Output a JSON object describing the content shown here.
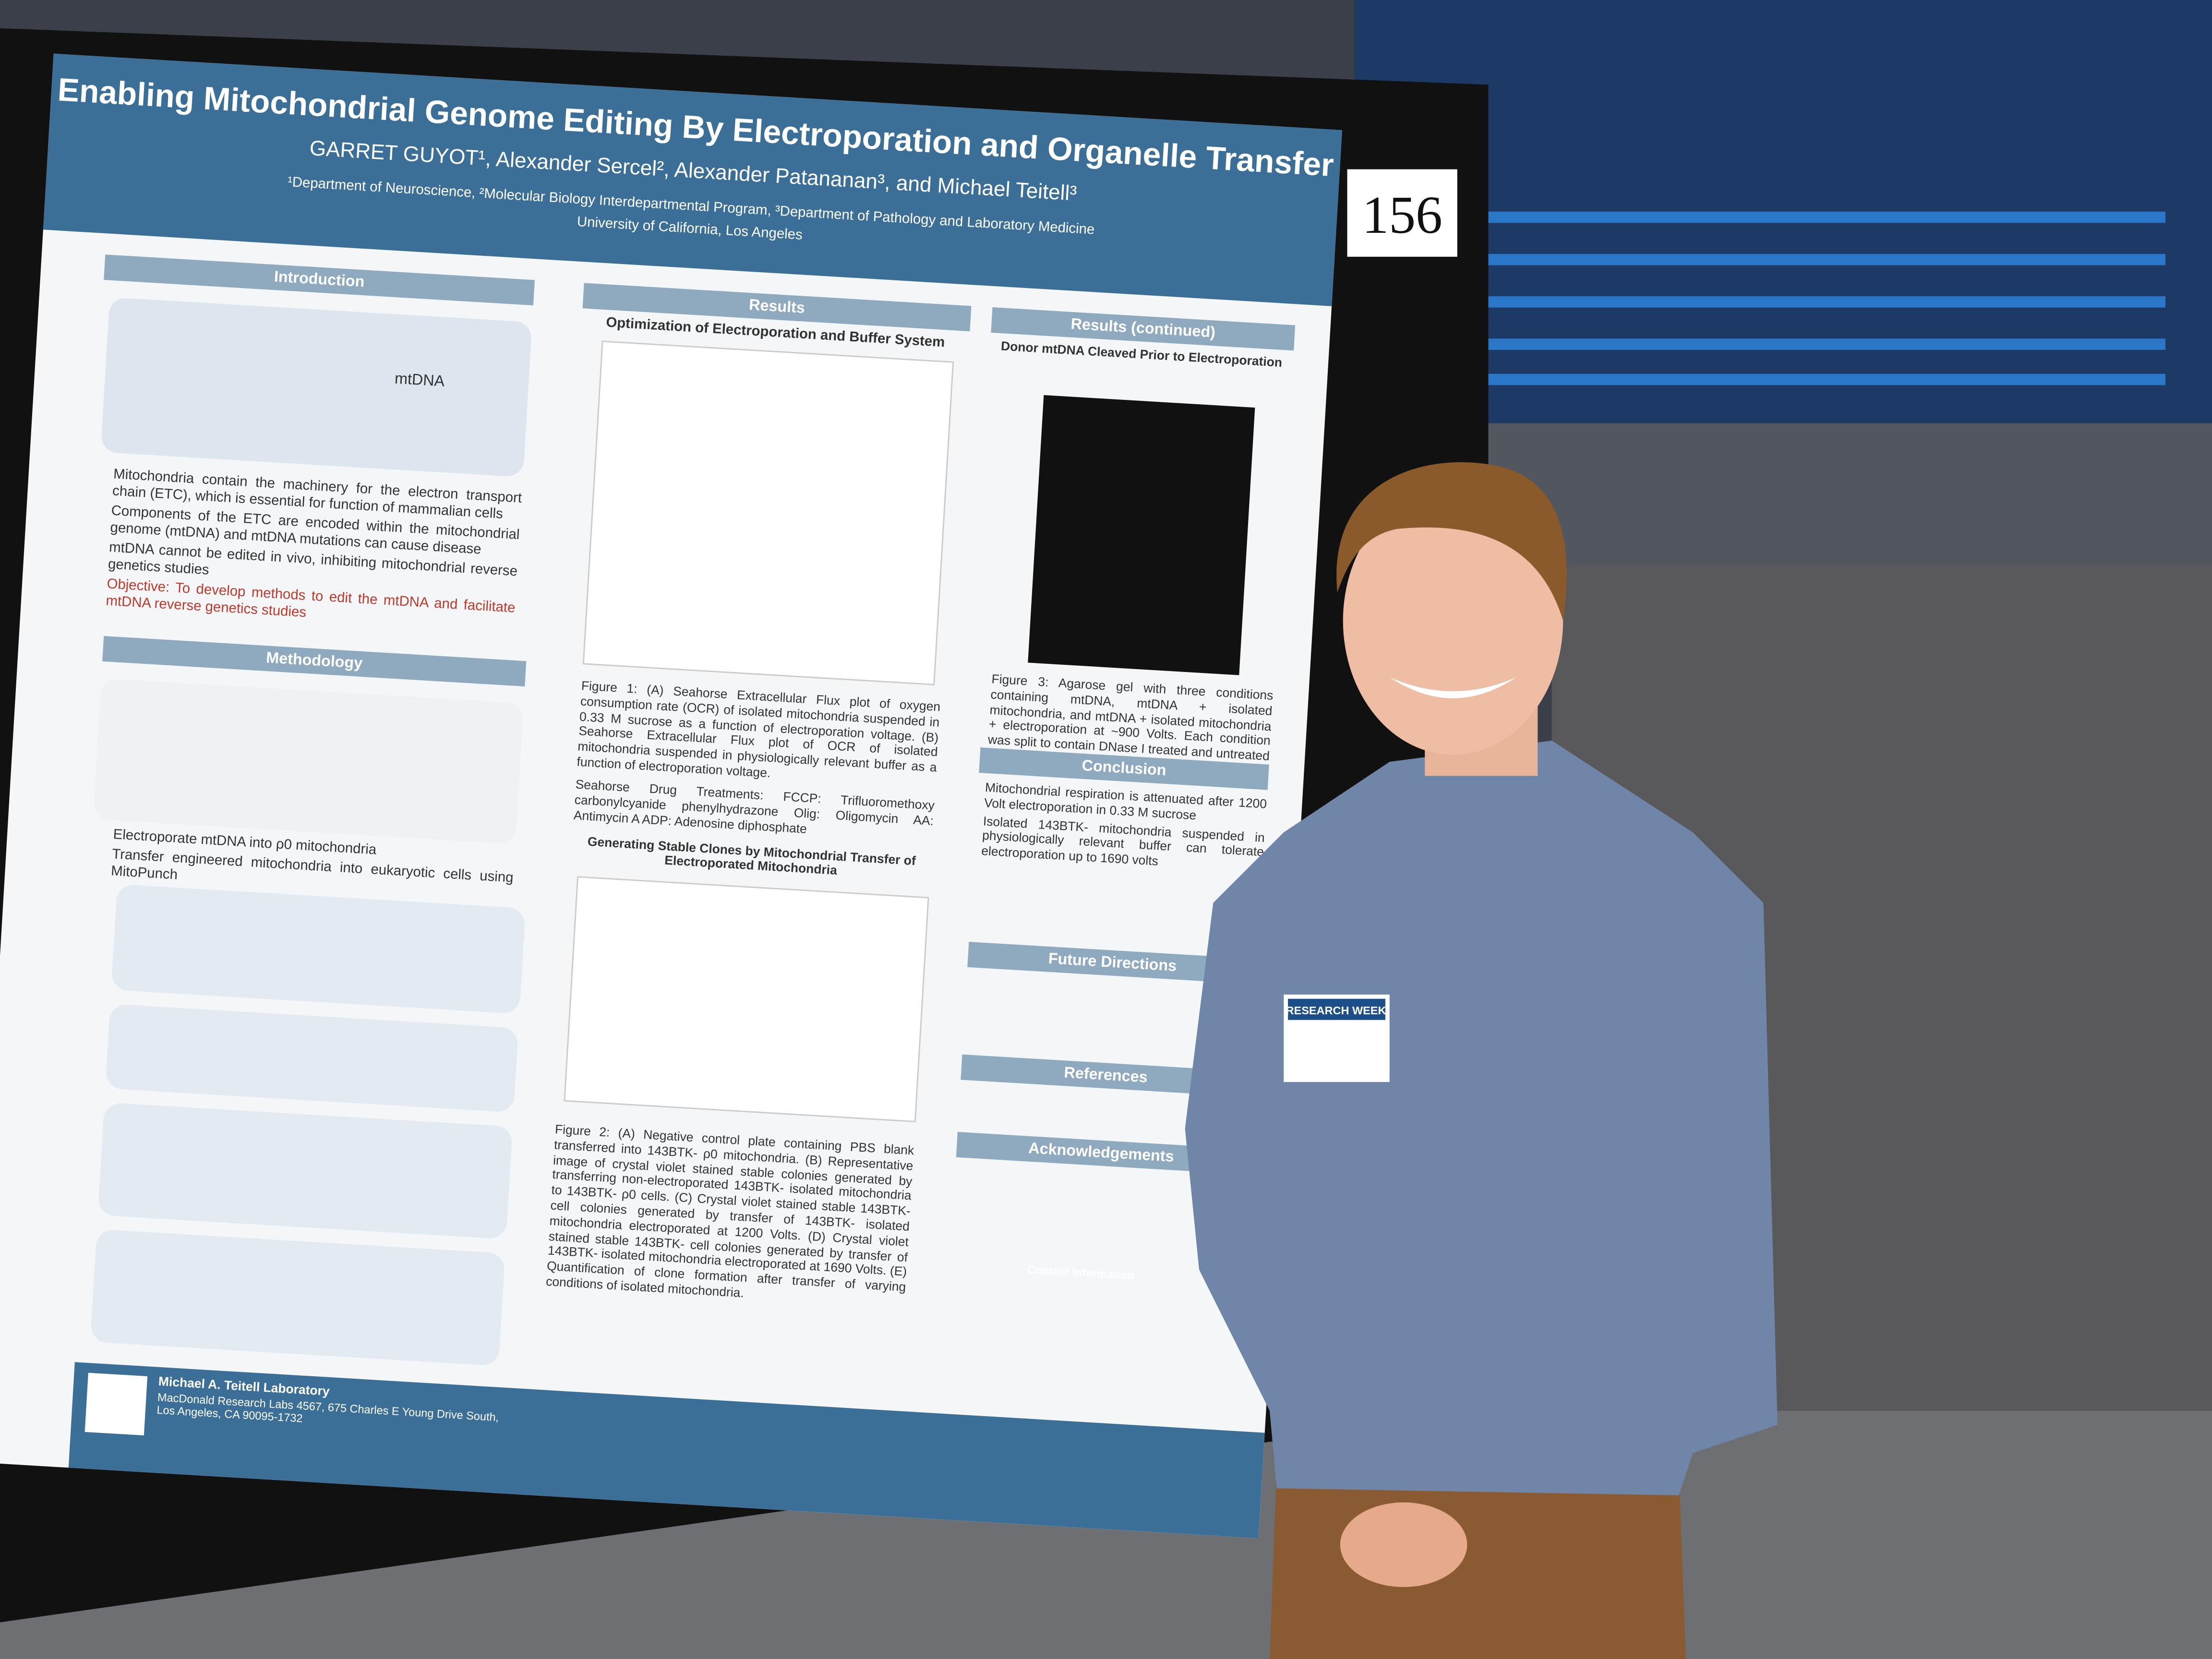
{
  "poster": {
    "title": "Enabling Mitochondrial Genome Editing By Electroporation and Organelle Transfer",
    "authors": "GARRET GUYOT¹,  Alexander Sercel², Alexander Patananan³, and Michael Teitell³",
    "affiliations": "¹Department of Neuroscience, ²Molecular Biology Interdepartmental Program, ³Department of Pathology and Laboratory Medicine",
    "university": "University of California, Los Angeles",
    "number": "156",
    "introduction": {
      "heading": "Introduction",
      "figure_label": "mtDNA",
      "items": [
        "Mitochondria contain the machinery for the electron transport chain (ETC), which is essential for function of mammalian cells",
        "Components of the ETC are encoded within the mitochondrial genome (mtDNA) and mtDNA mutations can cause disease",
        "mtDNA cannot be edited in vivo, inhibiting mitochondrial reverse genetics studies"
      ],
      "objective": "Objective: To develop methods to edit the mtDNA and facilitate mtDNA reverse genetics studies"
    },
    "methodology": {
      "heading": "Methodology",
      "items": [
        "Electroporate mtDNA into ρ0 mitochondria",
        "Transfer engineered mitochondria into eukaryotic cells using MitoPunch"
      ]
    },
    "results": {
      "heading": "Results",
      "figure1_title": "Optimization of Electroporation and Buffer System",
      "figure1_caption": "Figure 1: (A) Seahorse Extracellular Flux plot of oxygen consumption rate (OCR) of isolated mitochondria suspended in 0.33 M sucrose as a function of electroporation voltage. (B) Seahorse Extracellular Flux plot of OCR of isolated mitochondria suspended in physiologically relevant buffer as a function of electroporation voltage.",
      "drug_treatments": "Seahorse Drug Treatments: FCCP: Trifluoromethoxy carbonylcyanide phenylhydrazone Olig: Oligomycin AA: Antimycin A ADP: Adenosine diphosphate",
      "figure2_title": "Generating Stable Clones by Mitochondrial Transfer of Electroporated Mitochondria",
      "figure2_caption": "Figure 2: (A) Negative control plate containing PBS blank transferred into 143BTK- ρ0 mitochondria. (B) Representative image of crystal violet stained stable colonies generated by transferring non-electroporated 143BTK- isolated mitochondria to 143BTK- ρ0 cells. (C) Crystal violet stained stable 143BTK- cell colonies generated by transfer of 143BTK- isolated mitochondria electroporated at 1200 Volts. (D) Crystal violet stained stable 143BTK- cell colonies generated by transfer of 143BTK- isolated mitochondria electroporated at 1690 Volts. (E) Quantification of clone formation after transfer of varying conditions of isolated mitochondria."
    },
    "results_continued": {
      "heading": "Results (continued)",
      "figure3_title": "Donor mtDNA Cleaved Prior to Electroporation",
      "figure3_caption": "Figure 3: Agarose gel with three conditions containing mtDNA, mtDNA + isolated mitochondria, and mtDNA + isolated mitochondria + electroporation at ~900 Volts. Each condition was split to contain DNase I treated and untreated controls."
    },
    "conclusion": {
      "heading": "Conclusion",
      "items": [
        "Mitochondrial respiration is attenuated after 1200 Volt electroporation in 0.33 M sucrose",
        "Isolated 143BTK- mitochondria suspended in physiologically relevant buffer can tolerate electroporation up to 1690 volts"
      ]
    },
    "future_directions": {
      "heading": "Future Directions"
    },
    "references": {
      "heading": "References"
    },
    "acknowledgements": {
      "heading": "Acknowledgements"
    },
    "footer": {
      "lab": "Michael A. Teitell Laboratory",
      "address": "MacDonald Research Labs 4567, 675 Charles E Young Drive South, Los Angeles, CA 90095-1732",
      "contact": "Contact Information"
    }
  },
  "badge": "RESEARCH WEEK"
}
